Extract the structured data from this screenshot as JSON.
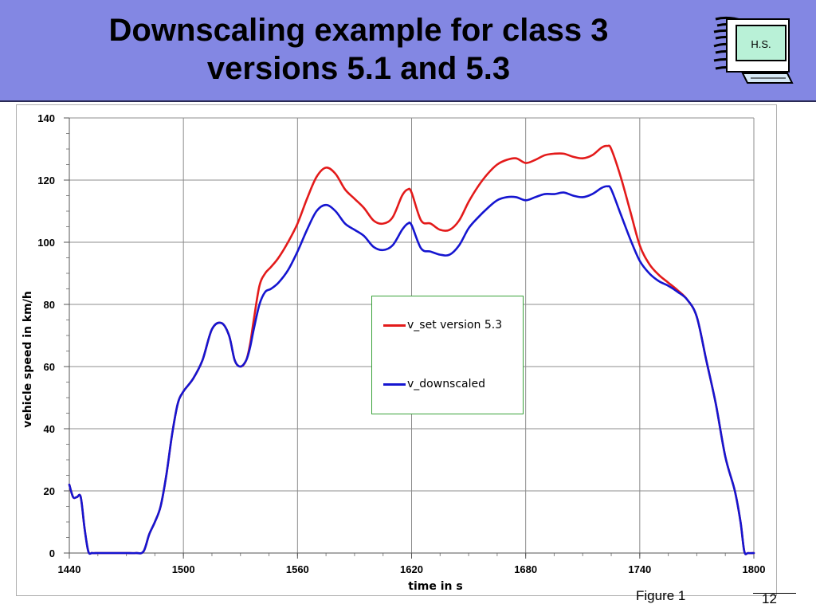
{
  "slide": {
    "title_line1": "Downscaling example for class 3",
    "title_line2": "versions 5.1 and 5.3",
    "logo_text": "H.S.",
    "figure_caption": "Figure 1",
    "page_number": "12"
  },
  "chart_data": {
    "type": "line",
    "title": "",
    "xlabel": "time in s",
    "ylabel": "vehicle speed in km/h",
    "xlim": [
      1440,
      1800
    ],
    "ylim": [
      0,
      140
    ],
    "xticks": [
      1440,
      1500,
      1560,
      1620,
      1680,
      1740,
      1800
    ],
    "yticks": [
      0,
      20,
      40,
      60,
      80,
      100,
      120,
      140
    ],
    "grid": true,
    "legend_position": "center",
    "series": [
      {
        "name": "v_set version 5.3",
        "color": "#e31a1a",
        "x": [
          1440,
          1442,
          1444,
          1446,
          1448,
          1450,
          1452,
          1455,
          1460,
          1465,
          1470,
          1475,
          1479,
          1482,
          1485,
          1488,
          1491,
          1494,
          1497,
          1500,
          1505,
          1510,
          1515,
          1520,
          1524,
          1527,
          1530,
          1533,
          1535,
          1537,
          1540,
          1543,
          1546,
          1550,
          1555,
          1560,
          1565,
          1570,
          1575,
          1580,
          1585,
          1590,
          1595,
          1600,
          1605,
          1610,
          1615,
          1618,
          1620,
          1625,
          1630,
          1635,
          1640,
          1645,
          1650,
          1655,
          1660,
          1665,
          1670,
          1675,
          1680,
          1685,
          1690,
          1695,
          1700,
          1705,
          1710,
          1715,
          1720,
          1723,
          1725,
          1730,
          1735,
          1740,
          1745,
          1750,
          1755,
          1760,
          1765,
          1770,
          1775,
          1780,
          1785,
          1790,
          1793,
          1795,
          1797,
          1800
        ],
        "values": [
          22,
          18,
          18,
          18,
          8,
          0.5,
          0,
          0,
          0,
          0,
          0,
          0,
          0.5,
          6,
          10,
          15,
          25,
          38,
          48,
          52,
          56,
          62,
          72,
          74,
          70,
          62,
          60,
          62,
          67,
          75,
          86,
          90,
          92,
          95,
          100,
          106,
          114,
          121,
          124,
          122,
          117,
          114,
          111,
          107,
          106,
          108,
          115,
          117,
          116,
          107,
          106,
          104,
          104,
          107,
          113,
          118,
          122,
          125,
          126.5,
          127,
          125.5,
          126.5,
          128,
          128.5,
          128.5,
          127.5,
          127,
          128,
          130.5,
          131,
          130,
          121,
          110,
          99,
          93,
          89.5,
          87,
          84.5,
          81.5,
          76,
          62,
          48,
          31,
          20,
          10,
          0.5,
          0,
          0
        ]
      },
      {
        "name": "v_downscaled",
        "color": "#1515d0",
        "x": [
          1440,
          1442,
          1444,
          1446,
          1448,
          1450,
          1452,
          1455,
          1460,
          1465,
          1470,
          1475,
          1479,
          1482,
          1485,
          1488,
          1491,
          1494,
          1497,
          1500,
          1505,
          1510,
          1515,
          1520,
          1524,
          1527,
          1530,
          1533,
          1535,
          1537,
          1540,
          1543,
          1546,
          1550,
          1555,
          1560,
          1565,
          1570,
          1575,
          1580,
          1585,
          1590,
          1595,
          1600,
          1605,
          1610,
          1615,
          1618,
          1620,
          1625,
          1630,
          1635,
          1640,
          1645,
          1650,
          1655,
          1660,
          1665,
          1670,
          1675,
          1680,
          1685,
          1690,
          1695,
          1700,
          1705,
          1710,
          1715,
          1720,
          1723,
          1725,
          1730,
          1735,
          1740,
          1745,
          1750,
          1755,
          1760,
          1765,
          1770,
          1775,
          1780,
          1785,
          1790,
          1793,
          1795,
          1797,
          1800
        ],
        "values": [
          22,
          18,
          18,
          18,
          8,
          0.5,
          0,
          0,
          0,
          0,
          0,
          0,
          0.5,
          6,
          10,
          15,
          25,
          38,
          48,
          52,
          56,
          62,
          72,
          74,
          70,
          62,
          60,
          62,
          66,
          72,
          80,
          84,
          85,
          87,
          91,
          97,
          104,
          110,
          112,
          110,
          106,
          104,
          102,
          98.5,
          97.5,
          99,
          104,
          106,
          105.5,
          98,
          97,
          96,
          96,
          99,
          104.5,
          108,
          111,
          113.5,
          114.5,
          114.5,
          113.5,
          114.5,
          115.5,
          115.5,
          116,
          115,
          114.5,
          115.5,
          117.5,
          118,
          117,
          109,
          101,
          94,
          90,
          87.5,
          86,
          84,
          81.5,
          76,
          62,
          48,
          31,
          20,
          10,
          0.5,
          0,
          0
        ]
      }
    ]
  }
}
